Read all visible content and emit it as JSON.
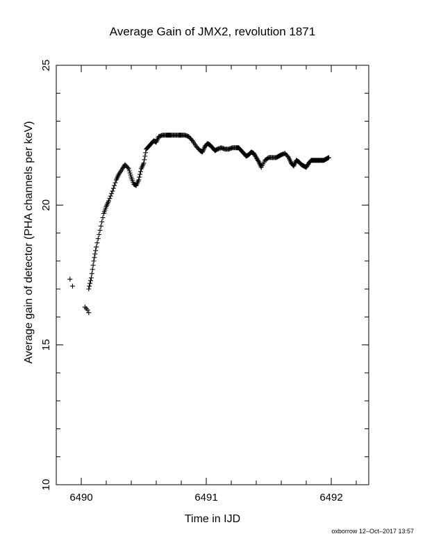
{
  "chart_data": {
    "type": "scatter",
    "title": "Average Gain of JMX2, revolution 1871",
    "xlabel": "Time in IJD",
    "ylabel": "Average gain of detector (PHA channels per keV)",
    "xlim": [
      6489.8,
      6492.3
    ],
    "ylim": [
      10,
      25
    ],
    "xticks": [
      6490,
      6491,
      6492
    ],
    "yticks": [
      10,
      15,
      20,
      25
    ],
    "marker": "+",
    "grid": false,
    "series": [
      {
        "values_note": "",
        "x": [
          6489.91,
          6489.93,
          6490.03,
          6490.04,
          6490.05,
          6490.06
        ],
        "y": [
          17.35,
          17.1,
          16.35,
          16.3,
          16.25,
          16.15
        ]
      },
      {
        "x": [
          6490.06,
          6490.08,
          6490.1,
          6490.12,
          6490.15,
          6490.18,
          6490.2,
          6490.22,
          6490.25,
          6490.28,
          6490.3,
          6490.33,
          6490.35,
          6490.38,
          6490.4,
          6490.42,
          6490.44,
          6490.46,
          6490.48,
          6490.5,
          6490.52,
          6490.54,
          6490.56,
          6490.58,
          6490.6,
          6490.62,
          6490.65,
          6490.68,
          6490.7,
          6490.72,
          6490.75,
          6490.78,
          6490.8,
          6490.83,
          6490.86,
          6490.89,
          6490.92,
          6490.95,
          6490.97,
          6490.99,
          6491.01,
          6491.03,
          6491.05,
          6491.07,
          6491.09,
          6491.12,
          6491.15,
          6491.18,
          6491.21,
          6491.24,
          6491.26,
          6491.28,
          6491.3,
          6491.32,
          6491.34,
          6491.36,
          6491.38,
          6491.4,
          6491.42,
          6491.44,
          6491.47,
          6491.5,
          6491.53,
          6491.56,
          6491.58,
          6491.6,
          6491.63,
          6491.66,
          6491.68,
          6491.7,
          6491.72,
          6491.74,
          6491.76,
          6491.78,
          6491.8,
          6491.82,
          6491.84,
          6491.86,
          6491.88,
          6491.9,
          6491.92,
          6491.94,
          6491.96,
          6491.98
        ],
        "y": [
          17.0,
          17.4,
          18.0,
          18.5,
          19.1,
          19.7,
          19.95,
          20.15,
          20.5,
          20.9,
          21.1,
          21.3,
          21.45,
          21.3,
          21.0,
          20.75,
          20.7,
          20.9,
          21.3,
          21.5,
          22.0,
          22.1,
          22.2,
          22.3,
          22.25,
          22.45,
          22.5,
          22.5,
          22.5,
          22.5,
          22.5,
          22.5,
          22.5,
          22.5,
          22.45,
          22.3,
          22.1,
          21.95,
          21.9,
          22.1,
          22.2,
          22.15,
          22.05,
          21.95,
          22.0,
          22.05,
          22.0,
          22.0,
          22.05,
          22.05,
          22.05,
          21.95,
          21.85,
          21.75,
          21.8,
          21.9,
          21.85,
          21.7,
          21.55,
          21.35,
          21.6,
          21.7,
          21.7,
          21.7,
          21.75,
          21.8,
          21.85,
          21.7,
          21.5,
          21.4,
          21.6,
          21.55,
          21.45,
          21.4,
          21.35,
          21.5,
          21.6,
          21.6,
          21.6,
          21.6,
          21.6,
          21.6,
          21.65,
          21.7
        ]
      }
    ]
  },
  "footer": "oxborrow 12–Oct–2017 13:57",
  "colors": {
    "axis": "#000000",
    "marker": "#000000",
    "background": "#ffffff"
  }
}
